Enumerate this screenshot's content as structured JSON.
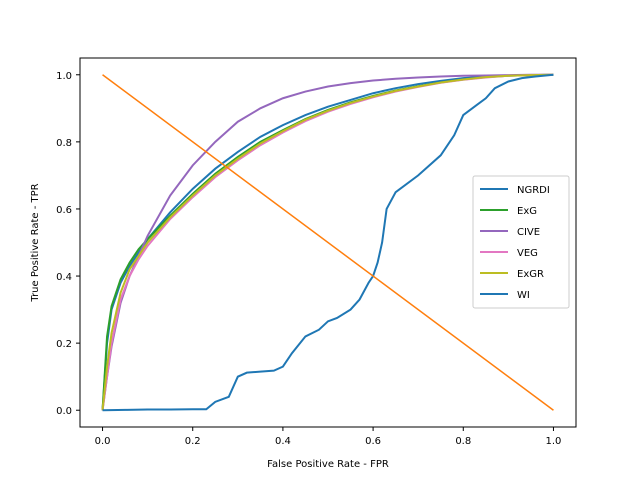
{
  "chart_data": {
    "type": "line",
    "title": "",
    "xlabel": "False Positive Rate - FPR",
    "ylabel": "True Positive Rate - TPR",
    "xlim": [
      -0.05,
      1.05
    ],
    "ylim": [
      -0.05,
      1.05
    ],
    "xticks": [
      "0.0",
      "0.2",
      "0.4",
      "0.6",
      "0.8",
      "1.0"
    ],
    "yticks": [
      "0.0",
      "0.2",
      "0.4",
      "0.6",
      "0.8",
      "1.0"
    ],
    "grid": false,
    "legend_position": "center-right",
    "series": [
      {
        "name": "NGRDI",
        "color": "#1f77b4",
        "x": [
          0,
          0.01,
          0.02,
          0.04,
          0.06,
          0.08,
          0.1,
          0.15,
          0.2,
          0.25,
          0.3,
          0.35,
          0.4,
          0.45,
          0.5,
          0.55,
          0.6,
          0.65,
          0.7,
          0.75,
          0.8,
          0.85,
          0.9,
          0.95,
          1.0
        ],
        "y": [
          0,
          0.2,
          0.3,
          0.38,
          0.43,
          0.47,
          0.51,
          0.59,
          0.66,
          0.72,
          0.77,
          0.815,
          0.85,
          0.88,
          0.905,
          0.925,
          0.945,
          0.96,
          0.972,
          0.982,
          0.99,
          0.995,
          0.998,
          0.999,
          1.0
        ]
      },
      {
        "name": "ExG",
        "color": "#2ca02c",
        "x": [
          0,
          0.01,
          0.02,
          0.04,
          0.06,
          0.08,
          0.1,
          0.15,
          0.2,
          0.25,
          0.3,
          0.35,
          0.4,
          0.45,
          0.5,
          0.55,
          0.6,
          0.65,
          0.7,
          0.75,
          0.8,
          0.85,
          0.9,
          0.95,
          1.0
        ],
        "y": [
          0,
          0.22,
          0.31,
          0.39,
          0.44,
          0.48,
          0.51,
          0.58,
          0.645,
          0.705,
          0.755,
          0.8,
          0.835,
          0.868,
          0.895,
          0.918,
          0.937,
          0.953,
          0.966,
          0.977,
          0.986,
          0.993,
          0.997,
          0.999,
          1.0
        ]
      },
      {
        "name": "CIVE",
        "color": "#9467bd",
        "x": [
          0,
          0.01,
          0.02,
          0.04,
          0.06,
          0.08,
          0.1,
          0.15,
          0.2,
          0.25,
          0.3,
          0.35,
          0.4,
          0.45,
          0.5,
          0.55,
          0.6,
          0.65,
          0.7,
          0.75,
          0.8,
          0.85,
          0.9,
          0.95,
          1.0
        ],
        "y": [
          0,
          0.1,
          0.19,
          0.32,
          0.4,
          0.46,
          0.52,
          0.64,
          0.73,
          0.8,
          0.86,
          0.9,
          0.93,
          0.95,
          0.965,
          0.975,
          0.983,
          0.988,
          0.992,
          0.995,
          0.997,
          0.998,
          0.999,
          1.0,
          1.0
        ]
      },
      {
        "name": "VEG",
        "color": "#e377c2",
        "x": [
          0,
          0.01,
          0.02,
          0.04,
          0.06,
          0.08,
          0.1,
          0.15,
          0.2,
          0.25,
          0.3,
          0.35,
          0.4,
          0.45,
          0.5,
          0.55,
          0.6,
          0.65,
          0.7,
          0.75,
          0.8,
          0.85,
          0.9,
          0.95,
          1.0
        ],
        "y": [
          0,
          0.1,
          0.2,
          0.33,
          0.4,
          0.45,
          0.49,
          0.57,
          0.635,
          0.695,
          0.745,
          0.79,
          0.828,
          0.862,
          0.89,
          0.913,
          0.933,
          0.95,
          0.964,
          0.976,
          0.985,
          0.992,
          0.997,
          0.999,
          1.0
        ]
      },
      {
        "name": "ExGR",
        "color": "#bcbd22",
        "x": [
          0,
          0.01,
          0.02,
          0.04,
          0.06,
          0.08,
          0.1,
          0.15,
          0.2,
          0.25,
          0.3,
          0.35,
          0.4,
          0.45,
          0.5,
          0.55,
          0.6,
          0.65,
          0.7,
          0.75,
          0.8,
          0.85,
          0.9,
          0.95,
          1.0
        ],
        "y": [
          0,
          0.13,
          0.23,
          0.35,
          0.42,
          0.46,
          0.5,
          0.575,
          0.64,
          0.7,
          0.75,
          0.795,
          0.832,
          0.866,
          0.893,
          0.916,
          0.935,
          0.952,
          0.965,
          0.977,
          0.986,
          0.993,
          0.997,
          0.999,
          1.0
        ]
      },
      {
        "name": "WI",
        "color": "#1f77b4",
        "x": [
          0,
          0.05,
          0.1,
          0.15,
          0.2,
          0.23,
          0.25,
          0.28,
          0.3,
          0.32,
          0.35,
          0.38,
          0.4,
          0.42,
          0.45,
          0.48,
          0.5,
          0.52,
          0.55,
          0.57,
          0.59,
          0.6,
          0.61,
          0.62,
          0.63,
          0.65,
          0.7,
          0.75,
          0.78,
          0.8,
          0.83,
          0.85,
          0.87,
          0.9,
          0.93,
          0.96,
          1.0
        ],
        "y": [
          0,
          0.001,
          0.002,
          0.002,
          0.003,
          0.003,
          0.025,
          0.04,
          0.1,
          0.112,
          0.115,
          0.118,
          0.13,
          0.17,
          0.22,
          0.24,
          0.265,
          0.275,
          0.3,
          0.33,
          0.38,
          0.4,
          0.44,
          0.5,
          0.6,
          0.65,
          0.7,
          0.76,
          0.82,
          0.88,
          0.91,
          0.93,
          0.96,
          0.98,
          0.99,
          0.995,
          1.0
        ]
      },
      {
        "name": "",
        "color": "#ff7f0e",
        "x": [
          0,
          1
        ],
        "y": [
          1,
          0
        ]
      }
    ]
  }
}
